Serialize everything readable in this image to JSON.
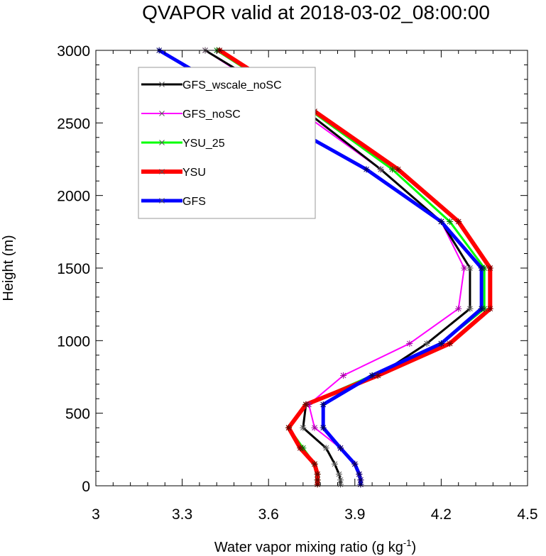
{
  "chart_data": {
    "type": "line",
    "title": "QVAPOR valid at 2018-03-02_08:00:00",
    "xlabel": "Water vapor mixing ratio (g kg",
    "xlabel_sup": "-1",
    "xlabel_close": ")",
    "ylabel": "Height (m)",
    "xlim": [
      3,
      4.5
    ],
    "ylim": [
      0,
      3000
    ],
    "x_ticks": [
      3,
      3.3,
      3.6,
      3.9,
      4.2,
      4.5
    ],
    "x_tick_labels": [
      "3",
      "3.3",
      "3.6",
      "3.9",
      "4.2",
      "4.5"
    ],
    "y_ticks": [
      0,
      500,
      1000,
      1500,
      2000,
      2500,
      3000
    ],
    "y_tick_labels": [
      "0",
      "500",
      "1000",
      "1500",
      "2000",
      "2500",
      "3000"
    ],
    "grid": false,
    "legend_position": "top-left",
    "heights": [
      10,
      40,
      80,
      150,
      260,
      400,
      560,
      760,
      980,
      1220,
      1500,
      1820,
      2180,
      2580,
      3000
    ],
    "series": [
      {
        "name": "GFS_wscale_noSC",
        "color": "#000000",
        "values": [
          3.85,
          3.85,
          3.845,
          3.83,
          3.8,
          3.72,
          3.73,
          3.98,
          4.15,
          4.3,
          4.3,
          4.2,
          3.99,
          3.73,
          3.38
        ]
      },
      {
        "name": "GFS_noSC",
        "color": "#ff00ff",
        "values": [
          3.92,
          3.92,
          3.915,
          3.9,
          3.85,
          3.76,
          3.74,
          3.86,
          4.09,
          4.26,
          4.28,
          4.2,
          3.99,
          3.71,
          3.38
        ]
      },
      {
        "name": "YSU_25",
        "color": "#00ff00",
        "values": [
          3.77,
          3.77,
          3.77,
          3.76,
          3.72,
          3.67,
          3.73,
          3.96,
          4.2,
          4.35,
          4.35,
          4.23,
          4.03,
          3.75,
          3.42
        ]
      },
      {
        "name": "YSU",
        "color": "#ff0000",
        "values": [
          3.77,
          3.77,
          3.77,
          3.76,
          3.71,
          3.67,
          3.73,
          3.98,
          4.23,
          4.37,
          4.37,
          4.26,
          4.05,
          3.76,
          3.43
        ]
      },
      {
        "name": "GFS",
        "color": "#0000ff",
        "values": [
          3.92,
          3.92,
          3.915,
          3.9,
          3.85,
          3.79,
          3.79,
          3.96,
          4.2,
          4.34,
          4.34,
          4.2,
          3.94,
          3.58,
          3.22
        ]
      }
    ],
    "line_widths": [
      3,
      2,
      3,
      6,
      5
    ]
  }
}
